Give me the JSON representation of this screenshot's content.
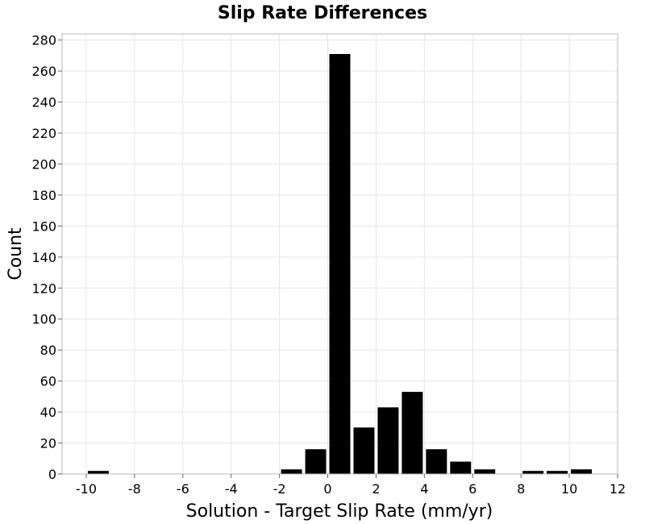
{
  "chart_data": {
    "type": "bar",
    "title": "Slip Rate Differences",
    "xlabel": "Solution - Target Slip Rate (mm/yr)",
    "ylabel": "Count",
    "xlim": [
      -11,
      12
    ],
    "ylim": [
      0,
      284
    ],
    "bin_width": 1,
    "xticks": [
      -10,
      -8,
      -6,
      -4,
      -2,
      0,
      2,
      4,
      6,
      8,
      10,
      12
    ],
    "yticks": [
      0,
      20,
      40,
      60,
      80,
      100,
      120,
      140,
      160,
      180,
      200,
      220,
      240,
      260,
      280
    ],
    "bins": [
      {
        "x": -10,
        "count": 2
      },
      {
        "x": -2,
        "count": 3
      },
      {
        "x": -1,
        "count": 16
      },
      {
        "x": 0,
        "count": 271
      },
      {
        "x": 1,
        "count": 30
      },
      {
        "x": 2,
        "count": 43
      },
      {
        "x": 3,
        "count": 53
      },
      {
        "x": 4,
        "count": 16
      },
      {
        "x": 5,
        "count": 8
      },
      {
        "x": 6,
        "count": 3
      },
      {
        "x": 8,
        "count": 2
      },
      {
        "x": 9,
        "count": 2
      },
      {
        "x": 10,
        "count": 3
      }
    ],
    "grid": true,
    "bar_color": "#000000"
  }
}
